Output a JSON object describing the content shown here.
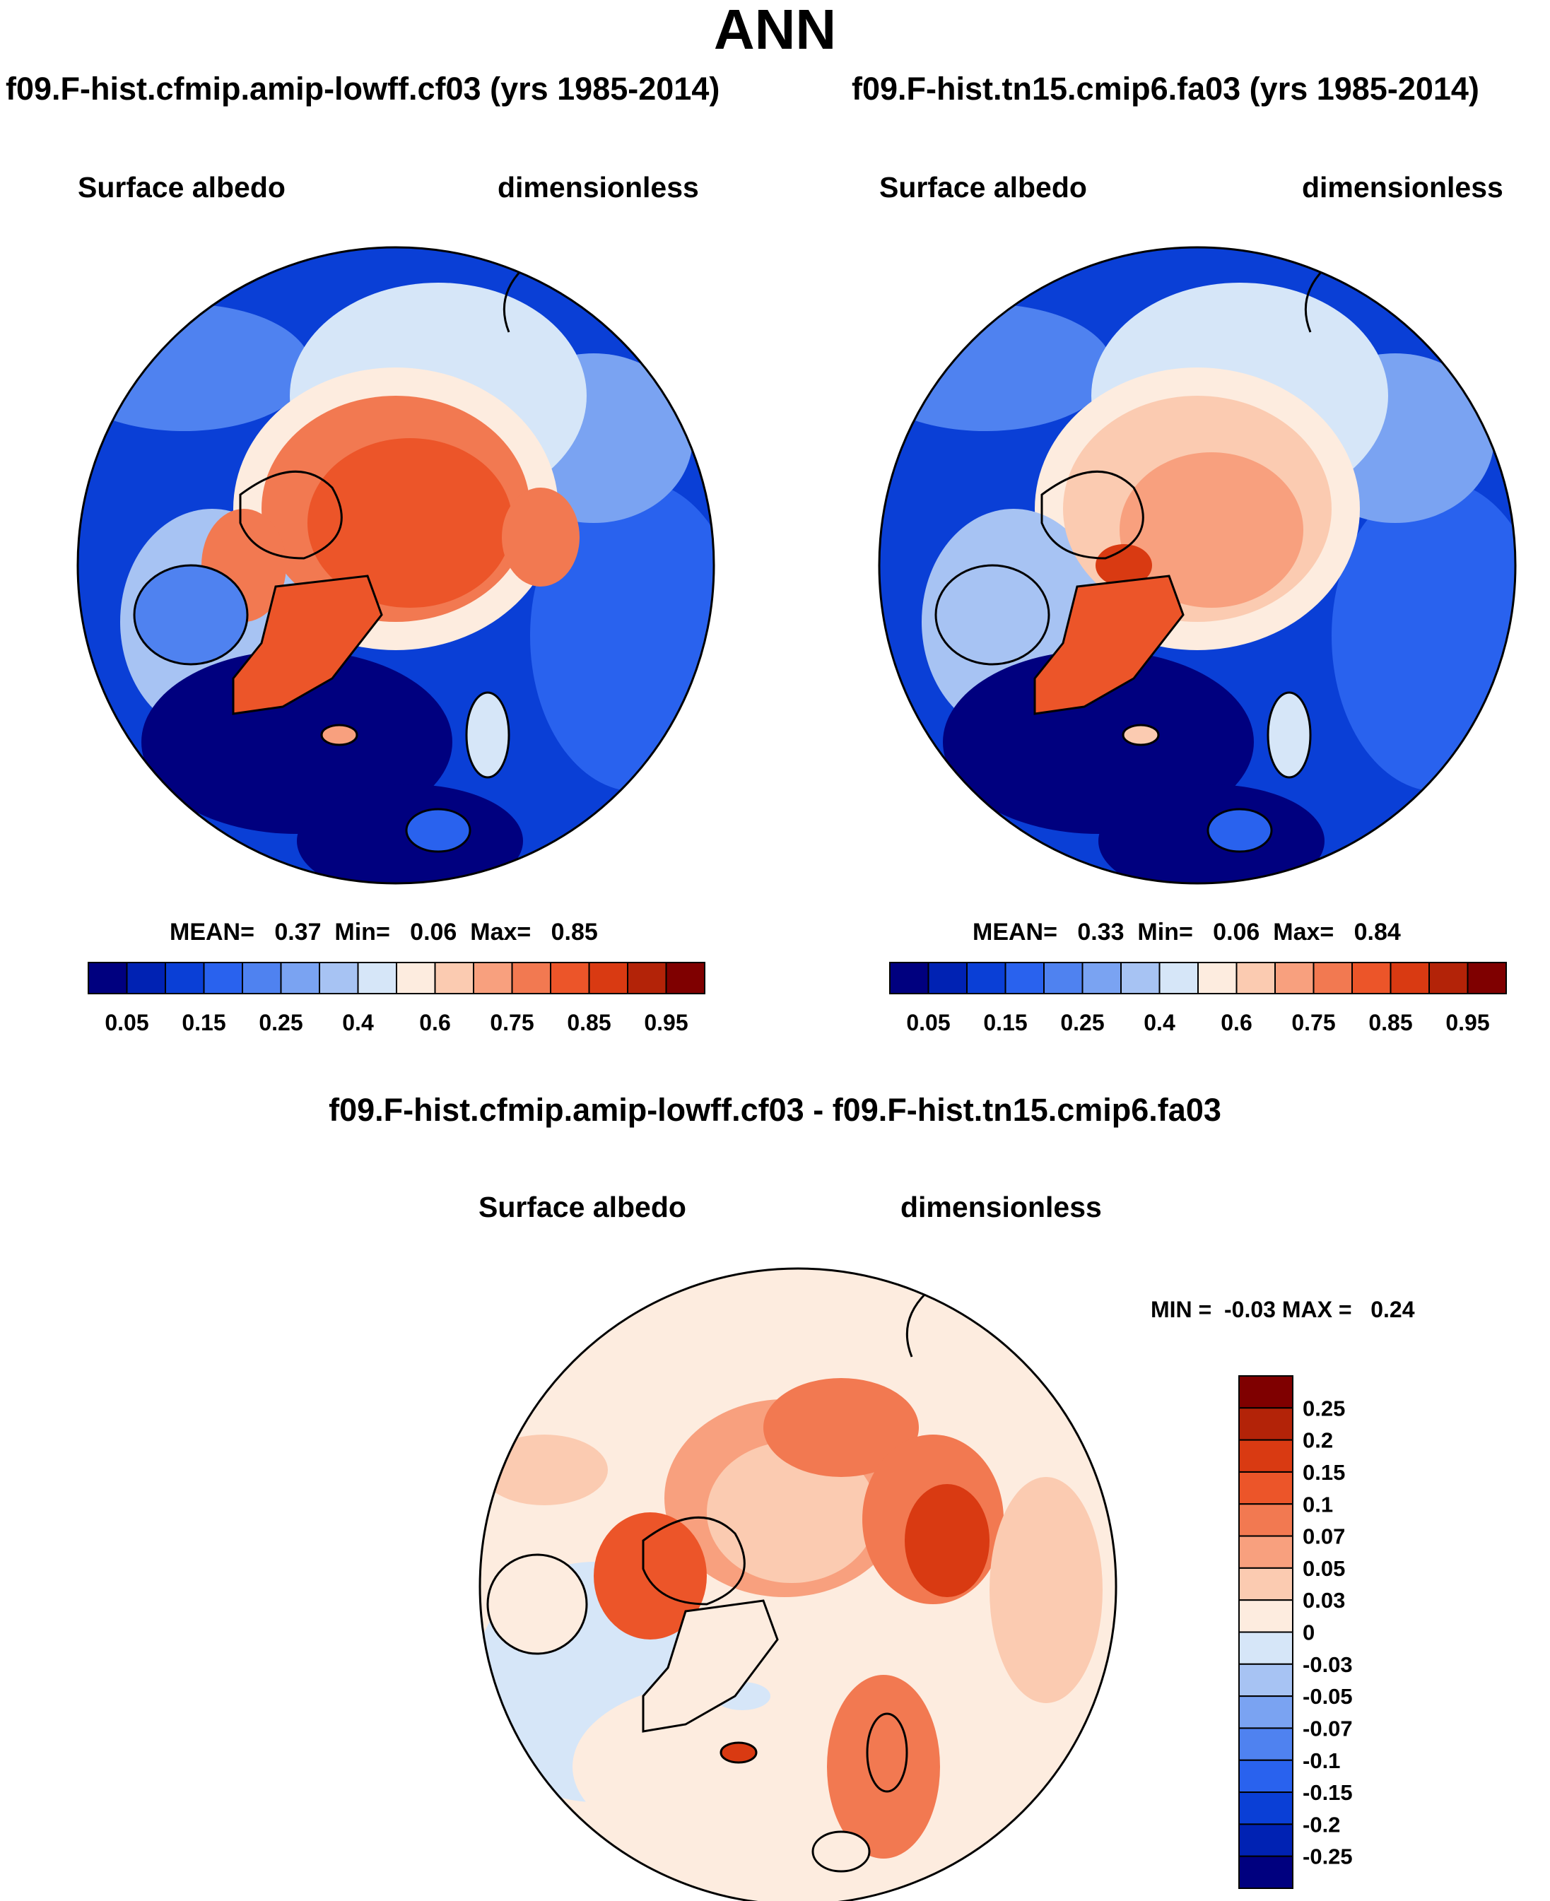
{
  "page_title": "ANN",
  "panels": [
    {
      "id": "left",
      "title": "f09.F-hist.cfmip.amip-lowff.cf03 (yrs 1985-2014)",
      "variable": "Surface albedo",
      "units": "dimensionless",
      "stats": {
        "mean_label": "MEAN=",
        "mean": "0.37",
        "min_label": "Min=",
        "min": "0.06",
        "max_label": "Max=",
        "max": "0.85"
      }
    },
    {
      "id": "right",
      "title": "f09.F-hist.tn15.cmip6.fa03 (yrs 1985-2014)",
      "variable": "Surface albedo",
      "units": "dimensionless",
      "stats": {
        "mean_label": "MEAN=",
        "mean": "0.33",
        "min_label": "Min=",
        "min": "0.06",
        "max_label": "Max=",
        "max": "0.84"
      }
    }
  ],
  "diff_panel": {
    "title": "f09.F-hist.cfmip.amip-lowff.cf03 - f09.F-hist.tn15.cmip6.fa03",
    "variable": "Surface albedo",
    "units": "dimensionless",
    "stats": {
      "min_label": "MIN =",
      "min": "-0.03",
      "max_label": "MAX =",
      "max": "0.24"
    }
  },
  "colorbar_top": {
    "colors": [
      "#00007f",
      "#0022b3",
      "#0a3fd6",
      "#2962ee",
      "#4f82f0",
      "#7aa3f2",
      "#a7c3f3",
      "#d6e6f8",
      "#fdecdf",
      "#fbcbb1",
      "#f8a07e",
      "#f27951",
      "#ec5529",
      "#d93a12",
      "#b32308",
      "#7f0000"
    ],
    "tick_labels": [
      "0.05",
      "0.15",
      "0.25",
      "0.4",
      "0.6",
      "0.75",
      "0.85",
      "0.95"
    ]
  },
  "colorbar_diff": {
    "colors": [
      "#7f0000",
      "#b32308",
      "#d93a12",
      "#ec5529",
      "#f27951",
      "#f8a07e",
      "#fbcbb1",
      "#fdecdf",
      "#d6e6f8",
      "#a7c3f3",
      "#7aa3f2",
      "#4f82f0",
      "#2962ee",
      "#0a3fd6",
      "#0022b3",
      "#00007f"
    ],
    "tick_labels": [
      "0.25",
      "0.2",
      "0.15",
      "0.1",
      "0.07",
      "0.05",
      "0.03",
      "0",
      "-0.03",
      "-0.05",
      "-0.07",
      "-0.1",
      "-0.15",
      "-0.2",
      "-0.25"
    ]
  }
}
